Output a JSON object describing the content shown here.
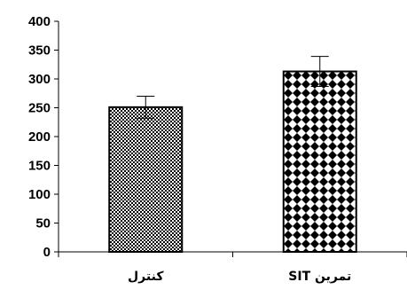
{
  "chart_data": {
    "type": "bar",
    "title": "",
    "xlabel": "",
    "ylabel": "",
    "categories": [
      "کنترل",
      "تمرین SIT"
    ],
    "values": [
      251,
      313
    ],
    "error": [
      19,
      26
    ],
    "ylim": [
      0,
      400
    ],
    "yticks": [
      0,
      50,
      100,
      150,
      200,
      250,
      300,
      350,
      400
    ],
    "bar_patterns": [
      "fine-checker",
      "diamond-checker"
    ],
    "colors": {
      "bar_fill_dark": "#000000",
      "bar_fill_light": "#ffffff",
      "axis": "#000000"
    },
    "grid": false,
    "legend": "none"
  }
}
